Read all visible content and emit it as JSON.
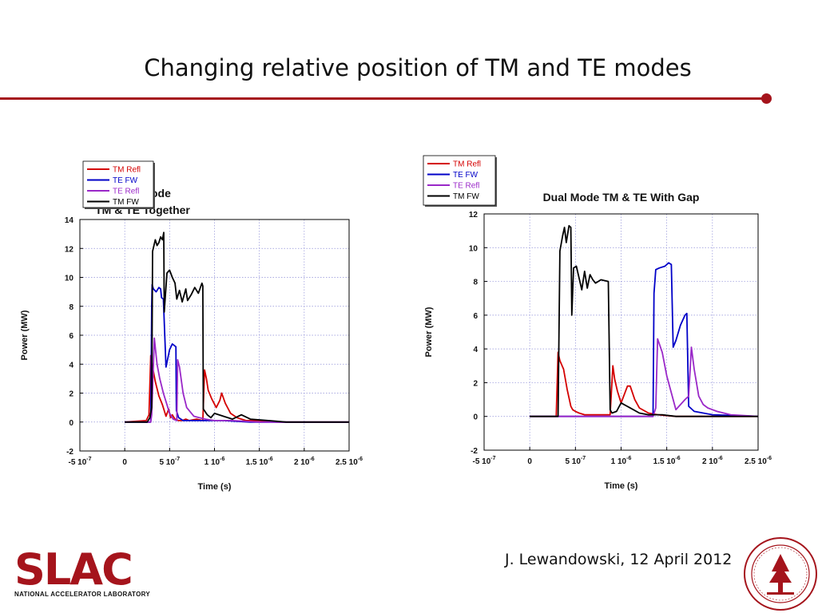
{
  "slide": {
    "title": "Changing relative position of TM and TE modes",
    "author": "J.  Lewandowski, 12 April 2012",
    "logo_text": "SLAC",
    "logo_subtitle": "NATIONAL ACCELERATOR LABORATORY"
  },
  "colors": {
    "accent": "#a5141c",
    "tm_refl": "#d40000",
    "te_fw": "#0000c8",
    "te_refl": "#9a28c8",
    "tm_fw": "#000000"
  },
  "chart_data": [
    {
      "type": "line",
      "title": [
        "Dual Mode",
        "TM & TE Together"
      ],
      "xlabel": "Time (s)",
      "ylabel": "Power (MW)",
      "xlim": [
        -5e-07,
        2.5e-06
      ],
      "ylim": [
        -2,
        14
      ],
      "x_ticks": [
        {
          "base": "-5 10",
          "exp": "-7"
        },
        {
          "base": "0",
          "exp": ""
        },
        {
          "base": "5 10",
          "exp": "-7"
        },
        {
          "base": "1 10",
          "exp": "-6"
        },
        {
          "base": "1.5 10",
          "exp": "-6"
        },
        {
          "base": "2 10",
          "exp": "-6"
        },
        {
          "base": "2.5 10",
          "exp": "-6"
        }
      ],
      "y_ticks": [
        "-2",
        "0",
        "2",
        "4",
        "6",
        "8",
        "10",
        "12",
        "14"
      ],
      "grid": true,
      "legend_position": "top-left",
      "series": [
        {
          "name": "TM Refl",
          "color": "#d40000",
          "x": [
            0,
            2.4e-07,
            2.7e-07,
            2.9e-07,
            3.1e-07,
            3.4e-07,
            3.8e-07,
            4.2e-07,
            4.6e-07,
            4.9e-07,
            5.1e-07,
            5.3e-07,
            5.6e-07,
            6e-07,
            6.4e-07,
            6.8e-07,
            7.2e-07,
            8e-07,
            8.7e-07,
            8.9e-07,
            9.1e-07,
            9.3e-07,
            9.7e-07,
            1.02e-06,
            1.06e-06,
            1.08e-06,
            1.12e-06,
            1.18e-06,
            1.25e-06,
            1.35e-06,
            1.5e-06,
            1.7e-06,
            2e-06,
            2.5e-06
          ],
          "y": [
            0,
            0.1,
            0.5,
            4.6,
            3.8,
            2.8,
            1.8,
            1.2,
            0.4,
            0.9,
            0.3,
            0.5,
            0.2,
            0.1,
            0.1,
            0.2,
            0.1,
            0.2,
            0.1,
            3.6,
            3.0,
            2.2,
            1.6,
            1.0,
            1.5,
            2.0,
            1.3,
            0.6,
            0.3,
            0.1,
            0.1,
            0.0,
            0.0,
            0.0
          ]
        },
        {
          "name": "TE FW",
          "color": "#0000c8",
          "x": [
            0,
            2.9e-07,
            3e-07,
            3.05e-07,
            3.2e-07,
            3.5e-07,
            3.8e-07,
            4e-07,
            4.1e-07,
            4.3e-07,
            4.6e-07,
            5e-07,
            5.3e-07,
            5.5e-07,
            5.7e-07,
            5.75e-07,
            6e-07,
            6.5e-07,
            7e-07,
            7.8e-07,
            9e-07,
            1.1e-06,
            1.4e-06,
            2.5e-06
          ],
          "y": [
            0,
            0,
            8.0,
            9.5,
            9.2,
            9.0,
            9.3,
            9.2,
            8.6,
            8.5,
            3.8,
            5.0,
            5.4,
            5.3,
            5.2,
            0.8,
            0.3,
            0.1,
            0.1,
            0.1,
            0.1,
            0.1,
            0.0,
            0.0
          ]
        },
        {
          "name": "TE Refl",
          "color": "#9a28c8",
          "x": [
            0,
            2.9e-07,
            3e-07,
            3.3e-07,
            3.6e-07,
            3.9e-07,
            4.3e-07,
            4.7e-07,
            5e-07,
            5.4e-07,
            5.8e-07,
            5.9e-07,
            6.1e-07,
            6.5e-07,
            6.9e-07,
            7.3e-07,
            7.7e-07,
            8.3e-07,
            9e-07,
            1e-06,
            1.2e-06,
            1.5e-06,
            1.9e-06,
            2.5e-06
          ],
          "y": [
            0,
            0,
            0.5,
            5.8,
            4.0,
            3.0,
            2.0,
            1.2,
            0.6,
            0.2,
            0.1,
            4.3,
            3.8,
            2.0,
            1.0,
            0.7,
            0.4,
            0.3,
            0.2,
            0.1,
            0.1,
            0.0,
            0.0,
            0.0
          ]
        },
        {
          "name": "TM FW",
          "color": "#000000",
          "x": [
            0,
            2.5e-07,
            2.8e-07,
            3e-07,
            3.1e-07,
            3.4e-07,
            3.6e-07,
            3.8e-07,
            4e-07,
            4.2e-07,
            4.35e-07,
            4.4e-07,
            4.7e-07,
            5e-07,
            5.3e-07,
            5.6e-07,
            5.8e-07,
            6.1e-07,
            6.4e-07,
            6.8e-07,
            7e-07,
            7.4e-07,
            7.8e-07,
            8.2e-07,
            8.6e-07,
            8.7e-07,
            8.75e-07,
            9.2e-07,
            9.6e-07,
            1e-06,
            1.1e-06,
            1.2e-06,
            1.3e-06,
            1.4e-06,
            1.6e-06,
            1.8e-06,
            2.2e-06,
            2.5e-06
          ],
          "y": [
            0,
            0,
            0.3,
            1.0,
            11.8,
            12.6,
            12.2,
            12.4,
            12.8,
            12.6,
            13.1,
            7.6,
            10.3,
            10.5,
            10.0,
            9.6,
            8.5,
            9.1,
            8.3,
            9.2,
            8.4,
            8.8,
            9.3,
            8.9,
            9.6,
            9.4,
            0.9,
            0.5,
            0.3,
            0.6,
            0.4,
            0.2,
            0.5,
            0.2,
            0.1,
            0.0,
            0.0,
            0.0
          ]
        }
      ]
    },
    {
      "type": "line",
      "title": [
        "Dual Mode TM & TE With Gap"
      ],
      "xlabel": "Time (s)",
      "ylabel": "Power (MW)",
      "xlim": [
        -5e-07,
        2.5e-06
      ],
      "ylim": [
        -2,
        12
      ],
      "x_ticks": [
        {
          "base": "-5 10",
          "exp": "-7"
        },
        {
          "base": "0",
          "exp": ""
        },
        {
          "base": "5 10",
          "exp": "-7"
        },
        {
          "base": "1 10",
          "exp": "-6"
        },
        {
          "base": "1.5 10",
          "exp": "-6"
        },
        {
          "base": "2 10",
          "exp": "-6"
        },
        {
          "base": "2.5 10",
          "exp": "-6"
        }
      ],
      "y_ticks": [
        "-2",
        "0",
        "2",
        "4",
        "6",
        "8",
        "10",
        "12"
      ],
      "grid": true,
      "legend_position": "top-left",
      "series": [
        {
          "name": "TM Refl",
          "color": "#d40000",
          "x": [
            0,
            2.9e-07,
            3.1e-07,
            3.3e-07,
            3.7e-07,
            4.1e-07,
            4.5e-07,
            4.7e-07,
            5e-07,
            5.4e-07,
            6e-07,
            8.8e-07,
            9.1e-07,
            9.3e-07,
            9.6e-07,
            1e-06,
            1.07e-06,
            1.1e-06,
            1.15e-06,
            1.2e-06,
            1.3e-06,
            1.4e-06,
            1.6e-06,
            2.5e-06
          ],
          "y": [
            0,
            0,
            3.8,
            3.3,
            2.8,
            1.6,
            0.6,
            0.4,
            0.3,
            0.2,
            0.1,
            0.1,
            3.0,
            2.2,
            1.5,
            0.8,
            1.8,
            1.8,
            1.0,
            0.5,
            0.2,
            0.1,
            0.0,
            0.0
          ]
        },
        {
          "name": "TE FW",
          "color": "#0000c8",
          "x": [
            0,
            1.35e-06,
            1.36e-06,
            1.38e-06,
            1.42e-06,
            1.48e-06,
            1.52e-06,
            1.55e-06,
            1.57e-06,
            1.6e-06,
            1.65e-06,
            1.7e-06,
            1.72e-06,
            1.74e-06,
            1.8e-06,
            1.9e-06,
            2e-06,
            2.5e-06
          ],
          "y": [
            0,
            0,
            7.3,
            8.7,
            8.8,
            8.9,
            9.1,
            9.0,
            4.1,
            4.5,
            5.4,
            6.0,
            6.1,
            0.6,
            0.3,
            0.2,
            0.1,
            0.0
          ]
        },
        {
          "name": "TE Refl",
          "color": "#9a28c8",
          "x": [
            0,
            1.35e-06,
            1.38e-06,
            1.4e-06,
            1.45e-06,
            1.5e-06,
            1.55e-06,
            1.6e-06,
            1.7e-06,
            1.74e-06,
            1.77e-06,
            1.8e-06,
            1.85e-06,
            1.9e-06,
            1.95e-06,
            2.05e-06,
            2.2e-06,
            2.5e-06
          ],
          "y": [
            0,
            0,
            0.5,
            4.6,
            3.8,
            2.4,
            1.4,
            0.4,
            1.0,
            1.2,
            4.1,
            2.8,
            1.2,
            0.7,
            0.5,
            0.3,
            0.1,
            0.0
          ]
        },
        {
          "name": "TM FW",
          "color": "#000000",
          "x": [
            0,
            3.1e-07,
            3.3e-07,
            3.6e-07,
            3.8e-07,
            4e-07,
            4.3e-07,
            4.5e-07,
            4.6e-07,
            4.8e-07,
            5.1e-07,
            5.4e-07,
            5.7e-07,
            6e-07,
            6.3e-07,
            6.6e-07,
            6.9e-07,
            7.2e-07,
            7.5e-07,
            7.8e-07,
            8.6e-07,
            8.8e-07,
            9e-07,
            9.5e-07,
            1e-06,
            1.1e-06,
            1.2e-06,
            1.3e-06,
            1.45e-06,
            1.6e-06,
            2e-06,
            2.5e-06
          ],
          "y": [
            0,
            0,
            9.8,
            10.7,
            11.2,
            10.3,
            11.3,
            11.2,
            6.0,
            8.8,
            8.9,
            8.2,
            7.5,
            8.6,
            7.6,
            8.4,
            8.1,
            7.9,
            8.0,
            8.1,
            8.0,
            0.4,
            0.2,
            0.3,
            0.8,
            0.5,
            0.2,
            0.1,
            0.1,
            0.0,
            0.0,
            0.0
          ]
        }
      ]
    }
  ]
}
